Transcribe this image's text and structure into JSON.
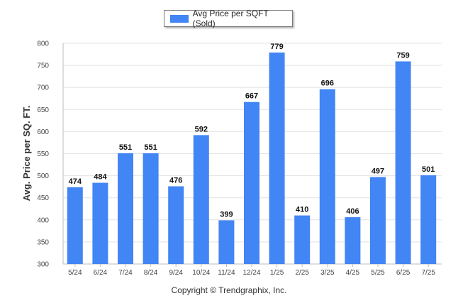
{
  "chart_data": {
    "type": "bar",
    "categories": [
      "5/24",
      "6/24",
      "7/24",
      "8/24",
      "9/24",
      "10/24",
      "11/24",
      "12/24",
      "1/25",
      "2/25",
      "3/25",
      "4/25",
      "5/25",
      "6/25",
      "7/25"
    ],
    "series": [
      {
        "name": "Avg Price per SQFT (Sold)",
        "values": [
          474,
          484,
          551,
          551,
          476,
          592,
          399,
          667,
          779,
          410,
          696,
          406,
          497,
          759,
          501
        ]
      }
    ],
    "ylabel": "Avg. Price per SQ. FT.",
    "xlabel": "",
    "ylim": [
      300,
      800
    ],
    "yticks": [
      300,
      350,
      400,
      450,
      500,
      550,
      600,
      650,
      700,
      750,
      800
    ],
    "grid": true,
    "legend_position": "top-center",
    "bar_color": "#4285f4"
  },
  "footer": {
    "copyright": "Copyright © Trendgraphix, Inc."
  }
}
